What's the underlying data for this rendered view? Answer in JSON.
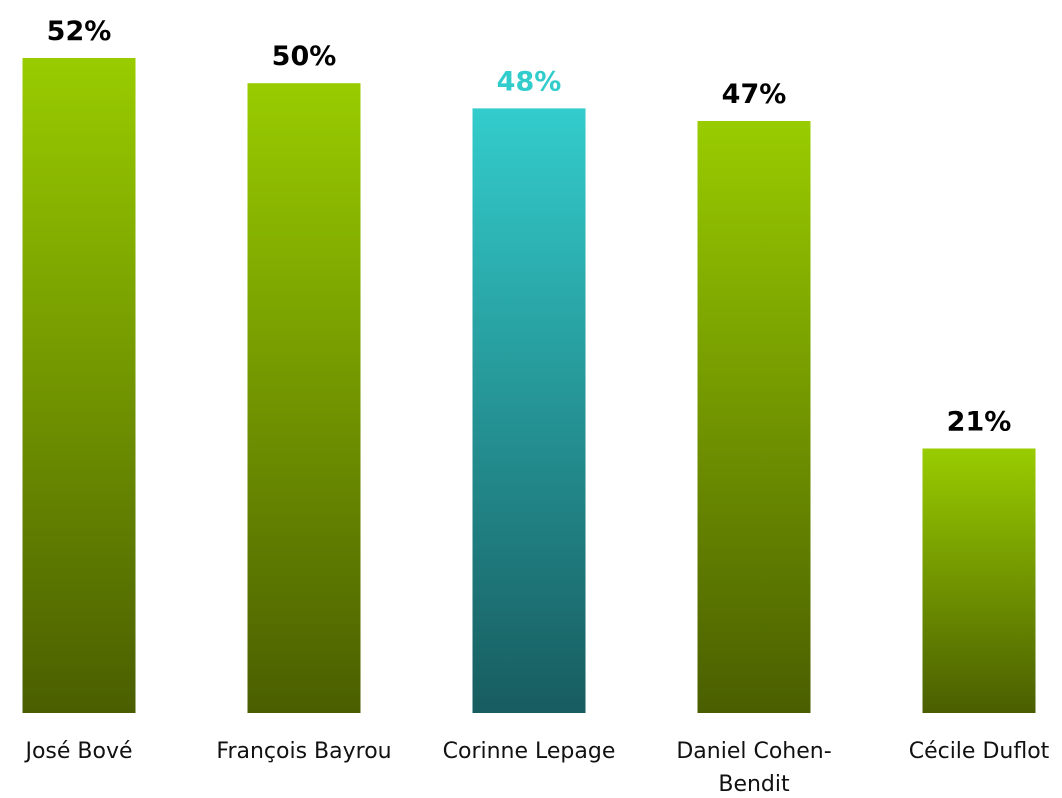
{
  "chart_data": {
    "type": "bar",
    "categories": [
      "José Bové",
      "François Bayrou",
      "Corinne Lepage",
      "Daniel Cohen-Bendit",
      "Cécile Duflot"
    ],
    "category_label_lines": [
      [
        "José Bové"
      ],
      [
        "François Bayrou"
      ],
      [
        "Corinne Lepage"
      ],
      [
        "Daniel Cohen-",
        "Bendit"
      ],
      [
        "Cécile Duflot"
      ]
    ],
    "values": [
      52,
      50,
      48,
      47,
      21
    ],
    "value_labels": [
      "52%",
      "50%",
      "48%",
      "47%",
      "21%"
    ],
    "highlight_index": 2,
    "colors": {
      "default_top": "#99cc00",
      "default_bottom": "#4a5e00",
      "highlight_top": "#33cccc",
      "highlight_bottom": "#175c5f",
      "default_label": "#000000",
      "highlight_label": "#33cccc"
    },
    "title": "",
    "xlabel": "",
    "ylabel": "",
    "ylim": [
      0,
      52
    ],
    "grid": false,
    "legend": "none"
  }
}
